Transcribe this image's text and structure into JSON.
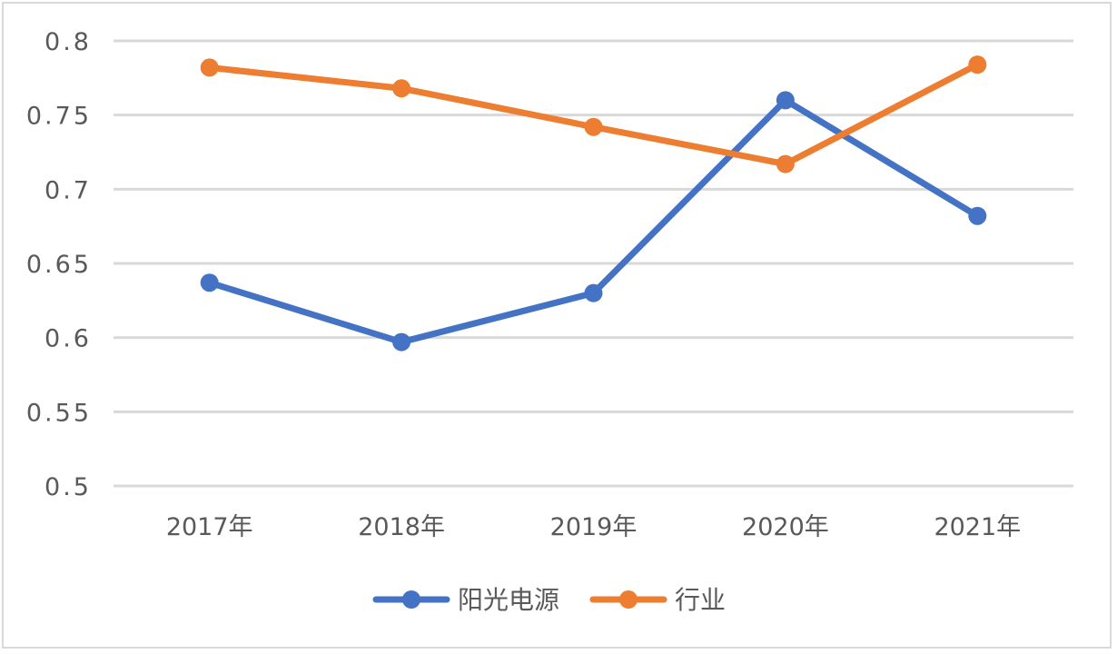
{
  "chart_data": {
    "type": "line",
    "title": "",
    "xlabel": "",
    "ylabel": "",
    "categories": [
      "2017年",
      "2018年",
      "2019年",
      "2020年",
      "2021年"
    ],
    "series": [
      {
        "name": "阳光电源",
        "color": "#4472c4",
        "values": [
          0.637,
          0.597,
          0.63,
          0.76,
          0.682
        ]
      },
      {
        "name": "行业",
        "color": "#ed7d31",
        "values": [
          0.782,
          0.768,
          0.742,
          0.717,
          0.784
        ]
      }
    ],
    "ylim": [
      0.5,
      0.8
    ],
    "yticks": [
      0.5,
      0.55,
      0.6,
      0.65,
      0.7,
      0.75,
      0.8
    ],
    "ytick_labels": [
      "0.5",
      "0.55",
      "0.6",
      "0.65",
      "0.7",
      "0.75",
      "0.8"
    ],
    "grid": true,
    "legend_position": "bottom",
    "markers": true
  },
  "legend": {
    "items": [
      {
        "label": "阳光电源",
        "color": "#4472c4"
      },
      {
        "label": "行业",
        "color": "#ed7d31"
      }
    ]
  },
  "colors": {
    "gridline": "#d9d9d9",
    "axis_text": "#595959",
    "border": "#d9d9d9"
  }
}
